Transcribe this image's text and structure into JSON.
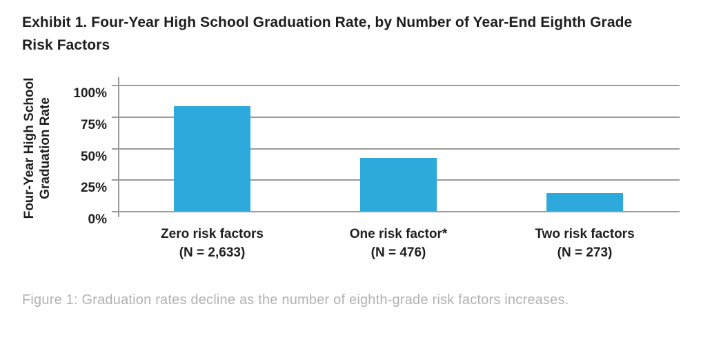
{
  "chart_data": {
    "type": "bar",
    "title": "Exhibit 1. Four-Year High School Graduation Rate, by Number of Year-End Eighth Grade Risk Factors",
    "title_lines": [
      "Exhibit 1. Four-Year High School Graduation Rate, by Number of Year-End Eighth Grade",
      "Risk Factors"
    ],
    "ylabel": "Four-Year High School Graduation Rate",
    "ylabel_lines": [
      "Four-Year High School",
      "Graduation Rate"
    ],
    "categories": [
      "Zero risk factors",
      "One risk factor*",
      "Two risk factors"
    ],
    "n_labels": [
      "(N = 2,633)",
      "(N = 476)",
      "(N = 273)"
    ],
    "values": [
      83,
      42,
      14
    ],
    "unit": "%",
    "ylim": [
      0,
      100
    ],
    "yticks": [
      {
        "label": "100%",
        "value": 100
      },
      {
        "label": "75%",
        "value": 75
      },
      {
        "label": "50%",
        "value": 50
      },
      {
        "label": "25%",
        "value": 25
      },
      {
        "label": "0%",
        "value": 0
      }
    ],
    "grid": true,
    "legend": false
  },
  "caption": "Figure 1: Graduation rates decline as the number of eighth-grade risk factors increases.",
  "colors": {
    "bar": "#2EA9DC",
    "grid": "#9A9A9A",
    "text": "#1E1E1E",
    "caption": "#B2B2B2"
  }
}
